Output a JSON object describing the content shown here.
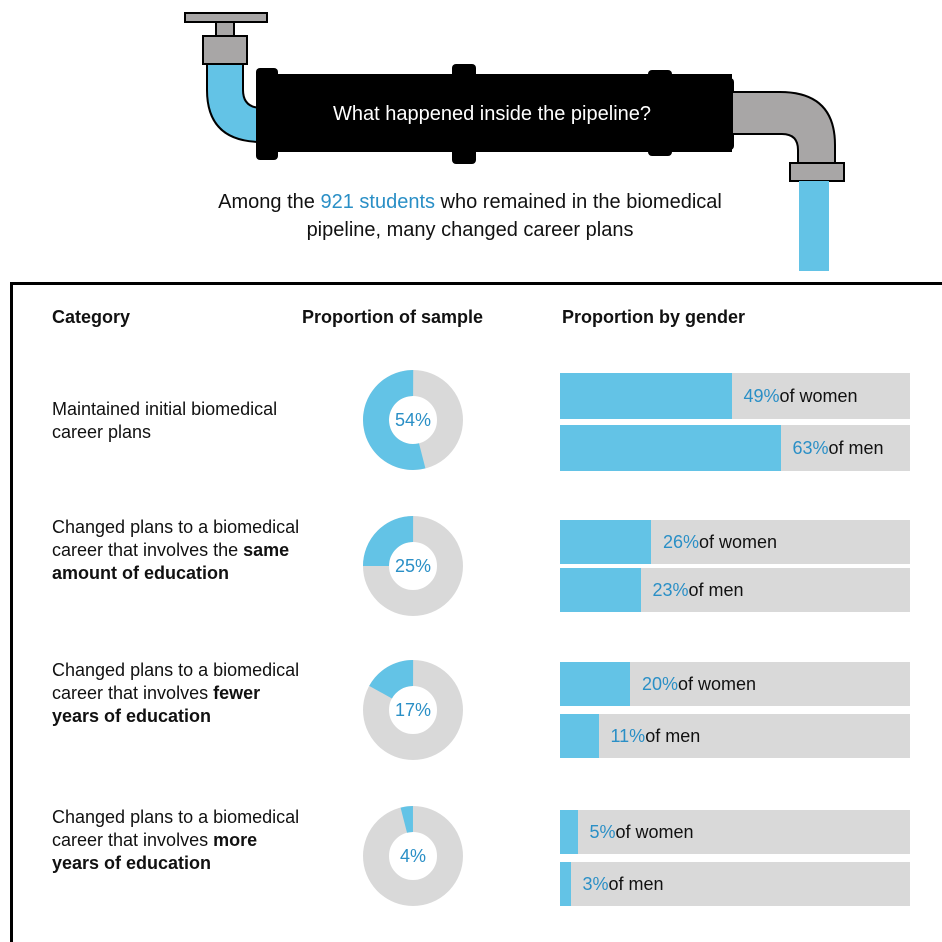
{
  "header": {
    "banner": "What happened inside the pipeline?",
    "subtitle_pre": "Among the ",
    "subtitle_highlight": "921 students",
    "subtitle_post": " who remained in the biomedical pipeline, many changed career plans"
  },
  "table": {
    "col_category": "Category",
    "col_sample": "Proportion of sample",
    "col_gender": "Proportion by gender"
  },
  "chart_data": {
    "type": "table",
    "rows": [
      {
        "category_plain": "Maintained initial biomedical career plans",
        "category_bold": "",
        "sample_label": "54%",
        "sample_value": 54,
        "women_value": 49,
        "women_pct": "49%",
        "women_text": " of women",
        "men_value": 63,
        "men_pct": "63%",
        "men_text": " of men"
      },
      {
        "category_plain": "Changed plans to a biomedical career that involves the ",
        "category_bold": "same amount of education",
        "sample_label": "25%",
        "sample_value": 25,
        "women_value": 26,
        "women_pct": "26%",
        "women_text": " of women",
        "men_value": 23,
        "men_pct": "23%",
        "men_text": " of men"
      },
      {
        "category_plain": "Changed plans to a biomedical career that involves ",
        "category_bold": "fewer years of education",
        "sample_label": "17%",
        "sample_value": 17,
        "women_value": 20,
        "women_pct": "20%",
        "women_text": " of women",
        "men_value": 11,
        "men_pct": "11%",
        "men_text": " of men"
      },
      {
        "category_plain": "Changed plans to a biomedical career that involves ",
        "category_bold": "more years of education",
        "sample_label": "4%",
        "sample_value": 4,
        "women_value": 5,
        "women_pct": "5%",
        "women_text": " of women",
        "men_value": 3,
        "men_pct": "3%",
        "men_text": " of men"
      }
    ]
  },
  "colors": {
    "fill": "#63c3e6",
    "track": "#d9d9d9",
    "accent": "#2a8fc6",
    "pipe": "#000000",
    "elbow": "#a8a6a6"
  }
}
